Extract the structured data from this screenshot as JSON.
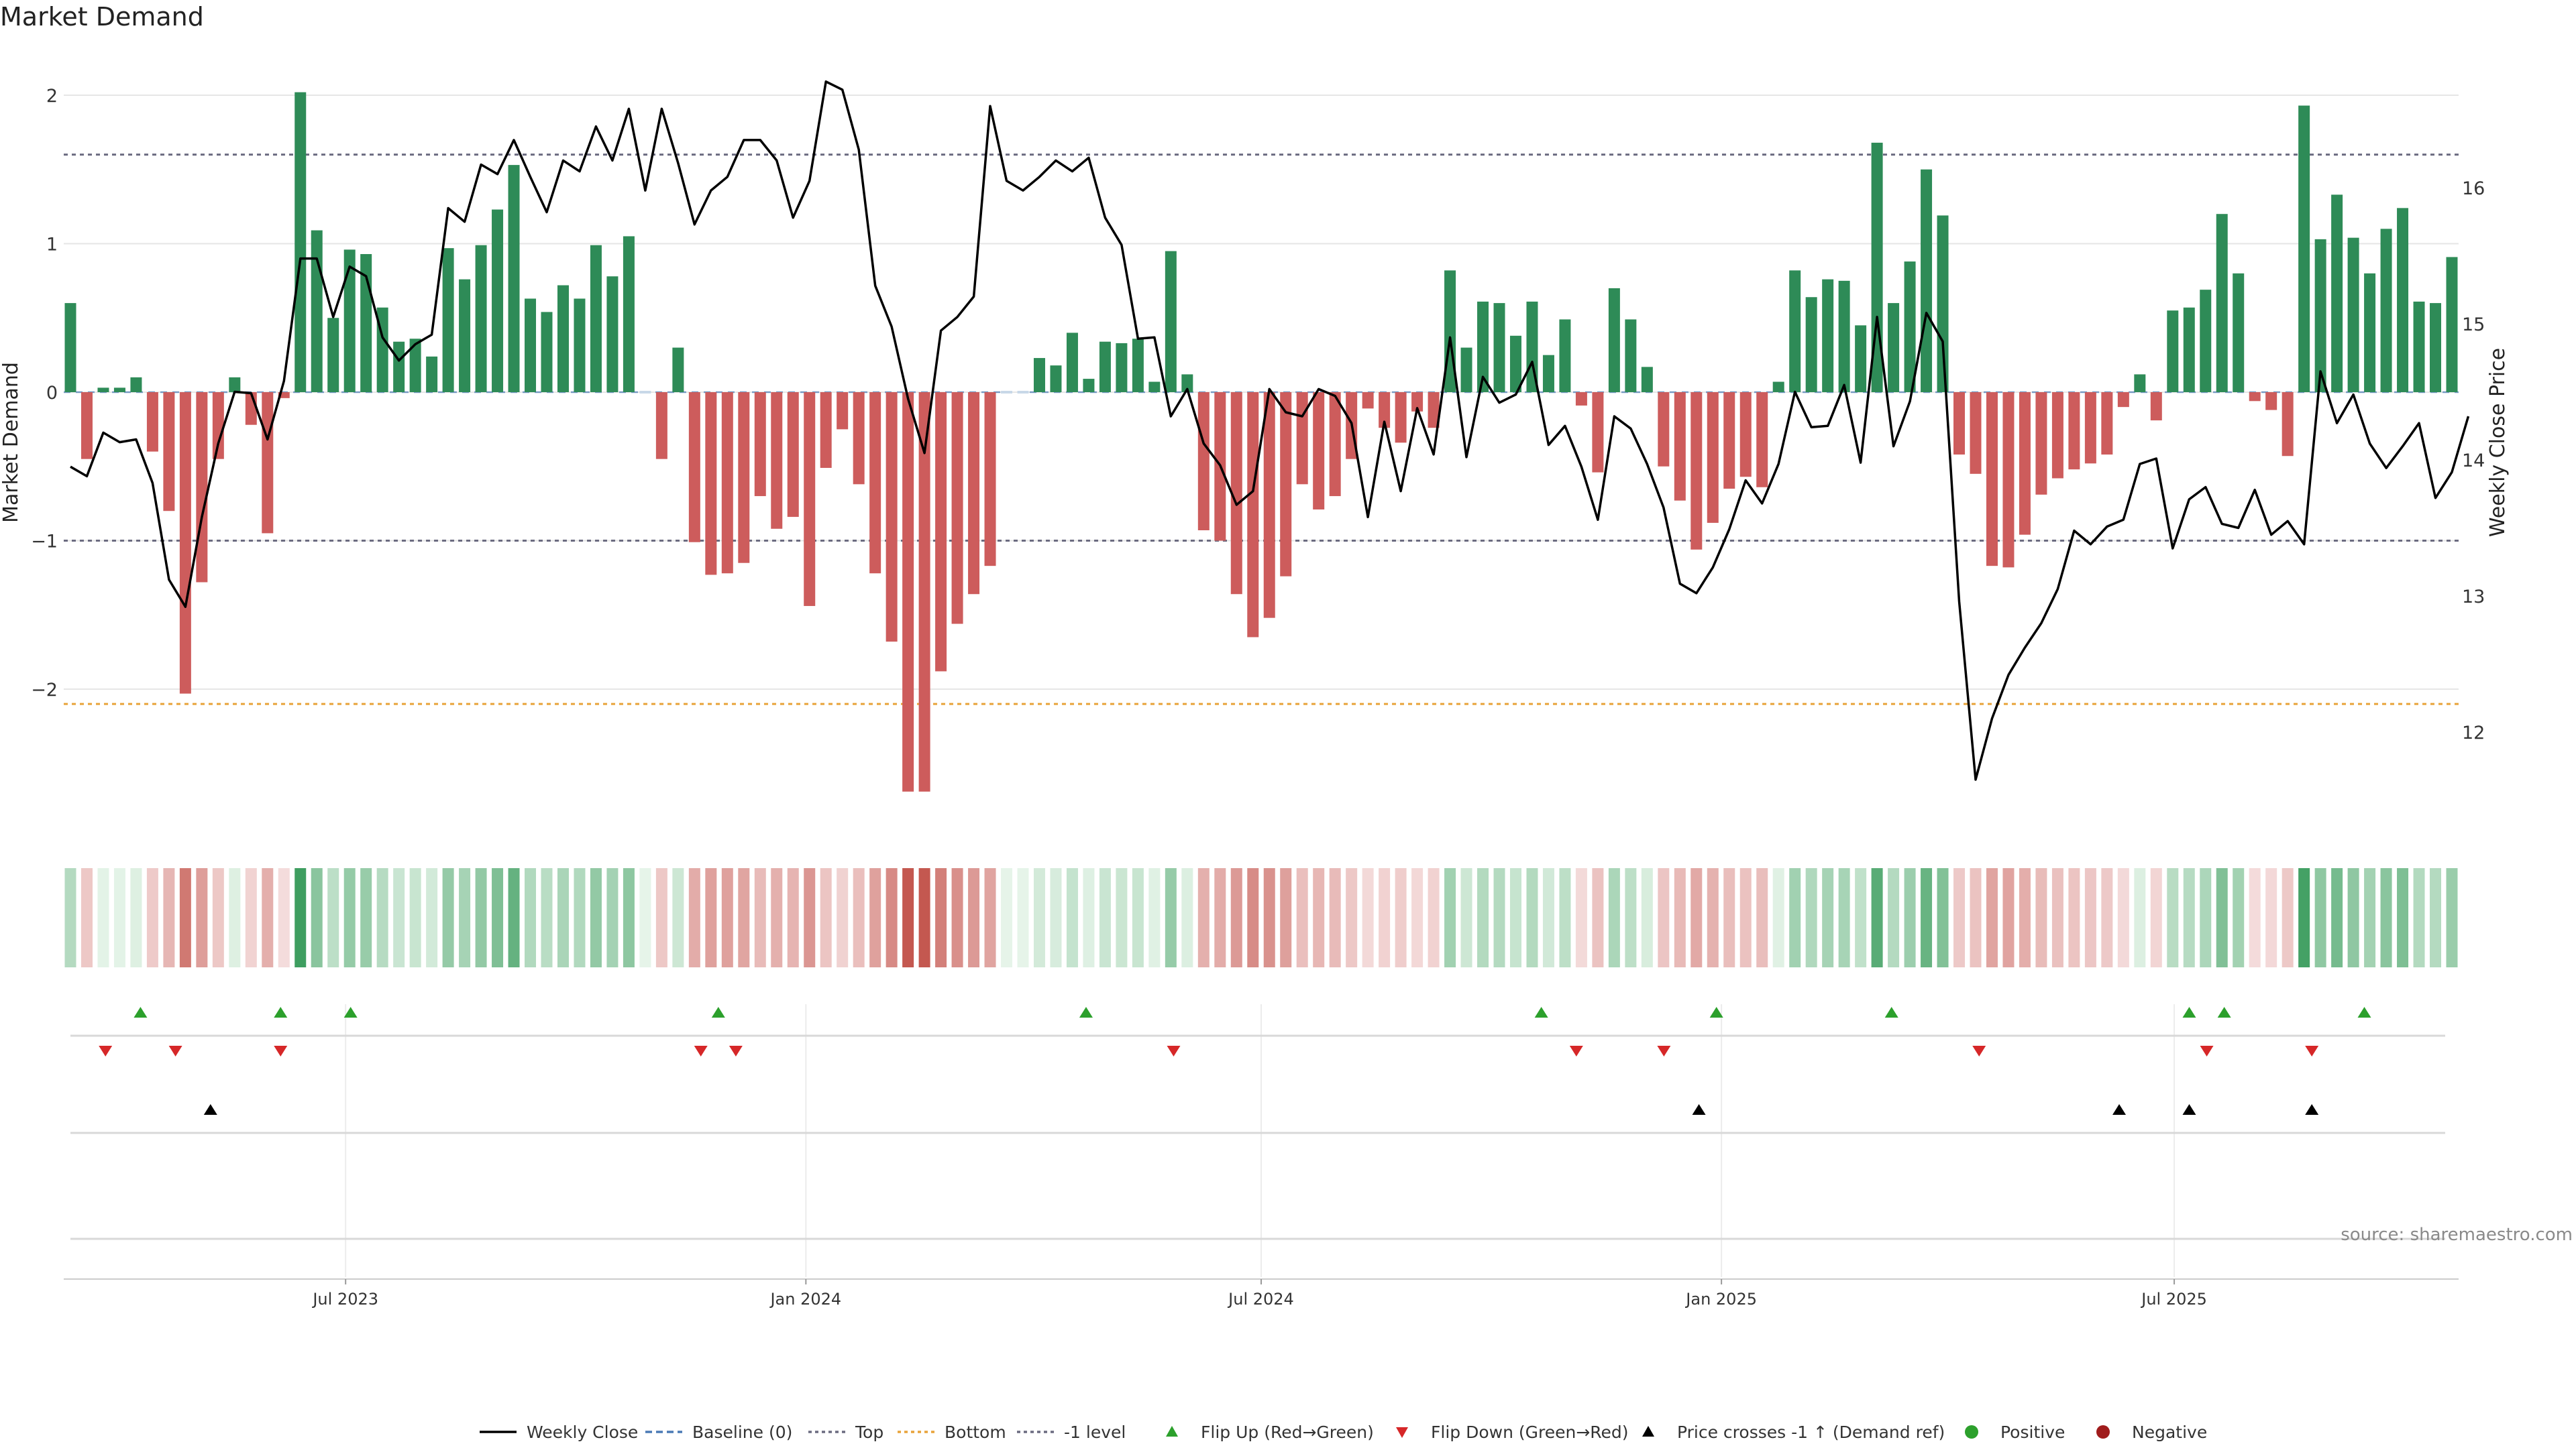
{
  "title": "Market Demand",
  "source": "source: sharemaestro.com",
  "colors": {
    "positive": "#2e8b57",
    "negative": "#cd5c5c",
    "positive_light": "#a8d8b0",
    "negative_light": "#e8b4b4",
    "price": "#000000",
    "reference": "#6b6b80",
    "bottom": "#e8a33a",
    "baseline": "#4a7ab5",
    "flip_up": "#2ca02c",
    "flip_down": "#d62728",
    "cross": "#000000",
    "negative_dot": "#a01c1c",
    "grid": "#e6e6e6"
  },
  "legend": [
    {
      "label": "Weekly Close",
      "kind": "line-solid",
      "color": "#000000"
    },
    {
      "label": "Baseline (0)",
      "kind": "line-dash",
      "color": "#4a7ab5"
    },
    {
      "label": "Top",
      "kind": "line-dot",
      "color": "#6b6b80"
    },
    {
      "label": "Bottom",
      "kind": "line-dot",
      "color": "#e8a33a"
    },
    {
      "label": "-1 level",
      "kind": "line-dot",
      "color": "#6b6b80"
    },
    {
      "label": "Flip Up (Red→Green)",
      "kind": "tri-up",
      "color": "#2ca02c"
    },
    {
      "label": "Flip Down (Green→Red)",
      "kind": "tri-down",
      "color": "#d62728"
    },
    {
      "label": "Price crosses -1 ↑ (Demand ref)",
      "kind": "tri-up",
      "color": "#000000"
    },
    {
      "label": "Positive",
      "kind": "dot",
      "color": "#2ca02c"
    },
    {
      "label": "Negative",
      "kind": "dot",
      "color": "#a01c1c"
    }
  ],
  "chart_data": {
    "type": "bar",
    "xlabel": "",
    "ylabel": "Market Demand",
    "y2label": "Weekly Close Price",
    "ylim": [
      -2.7,
      2.0
    ],
    "y2lim": [
      11.65,
      16.7
    ],
    "yticks": [
      2,
      1,
      0,
      -1,
      -2
    ],
    "ytick_labels": [
      "2",
      "1",
      "0",
      "−1",
      "−2"
    ],
    "y2ticks": [
      16,
      15,
      14,
      13,
      12
    ],
    "reference_lines": {
      "top": 1.6,
      "bottom": -2.1,
      "minus_one": -1,
      "baseline": 0
    },
    "x_start": "2023-03-13",
    "x_end": "2025-10-20",
    "xticks": [
      {
        "date": "2023-07-01",
        "label": "Jul 2023"
      },
      {
        "date": "2024-01-01",
        "label": "Jan 2024"
      },
      {
        "date": "2024-07-01",
        "label": "Jul 2024"
      },
      {
        "date": "2025-01-01",
        "label": "Jan 2025"
      },
      {
        "date": "2025-07-01",
        "label": "Jul 2025"
      }
    ],
    "grid": true,
    "legend_position": "bottom",
    "series": [
      {
        "name": "Market Demand",
        "type": "bar",
        "values": [
          0.6,
          -0.45,
          0.03,
          0.03,
          0.1,
          -0.4,
          -0.8,
          -2.03,
          -1.28,
          -0.45,
          0.1,
          -0.22,
          -0.95,
          -0.04,
          2.02,
          1.09,
          0.5,
          0.96,
          0.93,
          0.57,
          0.34,
          0.36,
          0.24,
          0.97,
          0.76,
          0.99,
          1.23,
          1.53,
          0.63,
          0.54,
          0.72,
          0.63,
          0.99,
          0.78,
          1.05,
          0.0,
          -0.45,
          0.3,
          -1.01,
          -1.23,
          -1.22,
          -1.15,
          -0.7,
          -0.92,
          -0.84,
          -1.44,
          -0.51,
          -0.25,
          -0.62,
          -1.22,
          -1.68,
          -2.69,
          -2.69,
          -1.88,
          -1.56,
          -1.36,
          -1.17,
          0.0,
          0.0,
          0.23,
          0.18,
          0.4,
          0.09,
          0.34,
          0.33,
          0.36,
          0.07,
          0.95,
          0.12,
          -0.93,
          -1.0,
          -1.36,
          -1.65,
          -1.52,
          -1.24,
          -0.62,
          -0.79,
          -0.7,
          -0.45,
          -0.11,
          -0.24,
          -0.34,
          -0.13,
          -0.24,
          0.82,
          0.3,
          0.61,
          0.6,
          0.38,
          0.61,
          0.25,
          0.49,
          -0.09,
          -0.54,
          0.7,
          0.49,
          0.17,
          -0.5,
          -0.73,
          -1.06,
          -0.88,
          -0.65,
          -0.57,
          -0.64,
          0.07,
          0.82,
          0.64,
          0.76,
          0.75,
          0.45,
          1.68,
          0.6,
          0.88,
          1.5,
          1.19,
          -0.42,
          -0.55,
          -1.17,
          -1.18,
          -0.96,
          -0.69,
          -0.58,
          -0.52,
          -0.48,
          -0.42,
          -0.1,
          0.12,
          -0.19,
          0.55,
          0.57,
          0.69,
          1.2,
          0.8,
          -0.06,
          -0.12,
          -0.43,
          1.93,
          1.03,
          1.33,
          1.04,
          0.8,
          1.1,
          1.24,
          0.61,
          0.6,
          0.91
        ]
      },
      {
        "name": "Weekly Close",
        "type": "line",
        "values": [
          13.95,
          13.88,
          14.2,
          14.13,
          14.15,
          13.83,
          13.12,
          12.92,
          13.58,
          14.12,
          14.5,
          14.49,
          14.15,
          14.58,
          15.48,
          15.48,
          15.05,
          15.42,
          15.35,
          14.9,
          14.73,
          14.85,
          14.92,
          15.85,
          15.75,
          16.17,
          16.1,
          16.35,
          16.08,
          15.82,
          16.2,
          16.12,
          16.45,
          16.2,
          16.58,
          15.98,
          16.58,
          16.18,
          15.73,
          15.98,
          16.08,
          16.35,
          16.35,
          16.2,
          15.78,
          16.05,
          16.78,
          16.72,
          16.28,
          15.28,
          14.98,
          14.45,
          14.05,
          14.95,
          15.05,
          15.2,
          16.6,
          16.05,
          15.98,
          16.08,
          16.2,
          16.12,
          16.22,
          15.78,
          15.58,
          14.89,
          14.9,
          14.32,
          14.52,
          14.12,
          13.96,
          13.67,
          13.77,
          14.52,
          14.35,
          14.32,
          14.52,
          14.47,
          14.27,
          13.58,
          14.28,
          13.77,
          14.38,
          14.04,
          14.9,
          14.02,
          14.61,
          14.42,
          14.48,
          14.72,
          14.11,
          14.25,
          13.95,
          13.56,
          14.32,
          14.23,
          13.97,
          13.65,
          13.09,
          13.02,
          13.21,
          13.49,
          13.85,
          13.68,
          13.97,
          14.5,
          14.24,
          14.25,
          14.55,
          13.98,
          15.05,
          14.1,
          14.43,
          15.08,
          14.87,
          12.96,
          11.65,
          12.1,
          12.42,
          12.62,
          12.8,
          13.05,
          13.48,
          13.38,
          13.51,
          13.56,
          13.97,
          14.01,
          13.35,
          13.71,
          13.8,
          13.53,
          13.5,
          13.78,
          13.45,
          13.55,
          13.38,
          14.65,
          14.27,
          14.48,
          14.12,
          13.94,
          14.1,
          14.27,
          13.72,
          13.91,
          14.32
        ]
      }
    ],
    "intensity_strip": {
      "label": "",
      "note": "cell color from series Market Demand sign and magnitude"
    },
    "markers": {
      "flip_up": [
        "2023-04-10",
        "2023-06-05",
        "2023-07-03",
        "2023-11-27",
        "2024-04-22",
        "2024-10-21",
        "2024-12-30",
        "2025-03-10",
        "2025-07-07",
        "2025-07-21",
        "2025-09-15"
      ],
      "flip_down": [
        "2023-03-27",
        "2023-04-24",
        "2023-06-05",
        "2023-11-20",
        "2023-12-04",
        "2024-05-27",
        "2024-11-04",
        "2024-12-09",
        "2025-04-14",
        "2025-07-14",
        "2025-08-25"
      ],
      "price_crosses": [
        "2023-05-08",
        "2024-12-23",
        "2025-06-09",
        "2025-07-07",
        "2025-08-25"
      ]
    }
  }
}
